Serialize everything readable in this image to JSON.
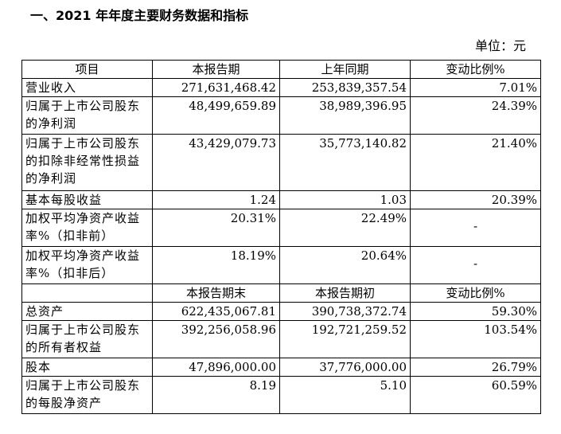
{
  "heading": "一、2021 年年度主要财务数据和指标",
  "unit": "单位：元",
  "header1": [
    "项目",
    "本报告期",
    "上年同期",
    "变动比例%"
  ],
  "header2": [
    "",
    "本报告期末",
    "本报告期初",
    "变动比例%"
  ],
  "rows1": [
    {
      "label": "营业收入",
      "current": "271,631,468.42",
      "prior": "253,839,357.54",
      "change": "7.01%"
    },
    {
      "label": "归属于上市公司股东的净利润",
      "current": "48,499,659.89",
      "prior": "38,989,396.95",
      "change": "24.39%"
    },
    {
      "label": "归属于上市公司股东的扣除非经常性损益的净利润",
      "current": "43,429,079.73",
      "prior": "35,773,140.82",
      "change": "21.40%"
    },
    {
      "label": "基本每股收益",
      "current": "1.24",
      "prior": "1.03",
      "change": "20.39%"
    },
    {
      "label": "加权平均净资产收益率%（扣非前）",
      "current": "20.31%",
      "prior": "22.49%",
      "change": "-"
    },
    {
      "label": "加权平均净资产收益率%（扣非后）",
      "current": "18.19%",
      "prior": "20.64%",
      "change": "-"
    }
  ],
  "rows2": [
    {
      "label": "总资产",
      "current": "622,435,067.81",
      "prior": "390,738,372.74",
      "change": "59.30%"
    },
    {
      "label": "归属于上市公司股东的所有者权益",
      "current": "392,256,058.96",
      "prior": "192,721,259.52",
      "change": "103.54%"
    },
    {
      "label": "股本",
      "current": "47,896,000.00",
      "prior": "37,776,000.00",
      "change": "26.79%"
    },
    {
      "label": "归属于上市公司股东的每股净资产",
      "current": "8.19",
      "prior": "5.10",
      "change": "60.59%"
    }
  ]
}
